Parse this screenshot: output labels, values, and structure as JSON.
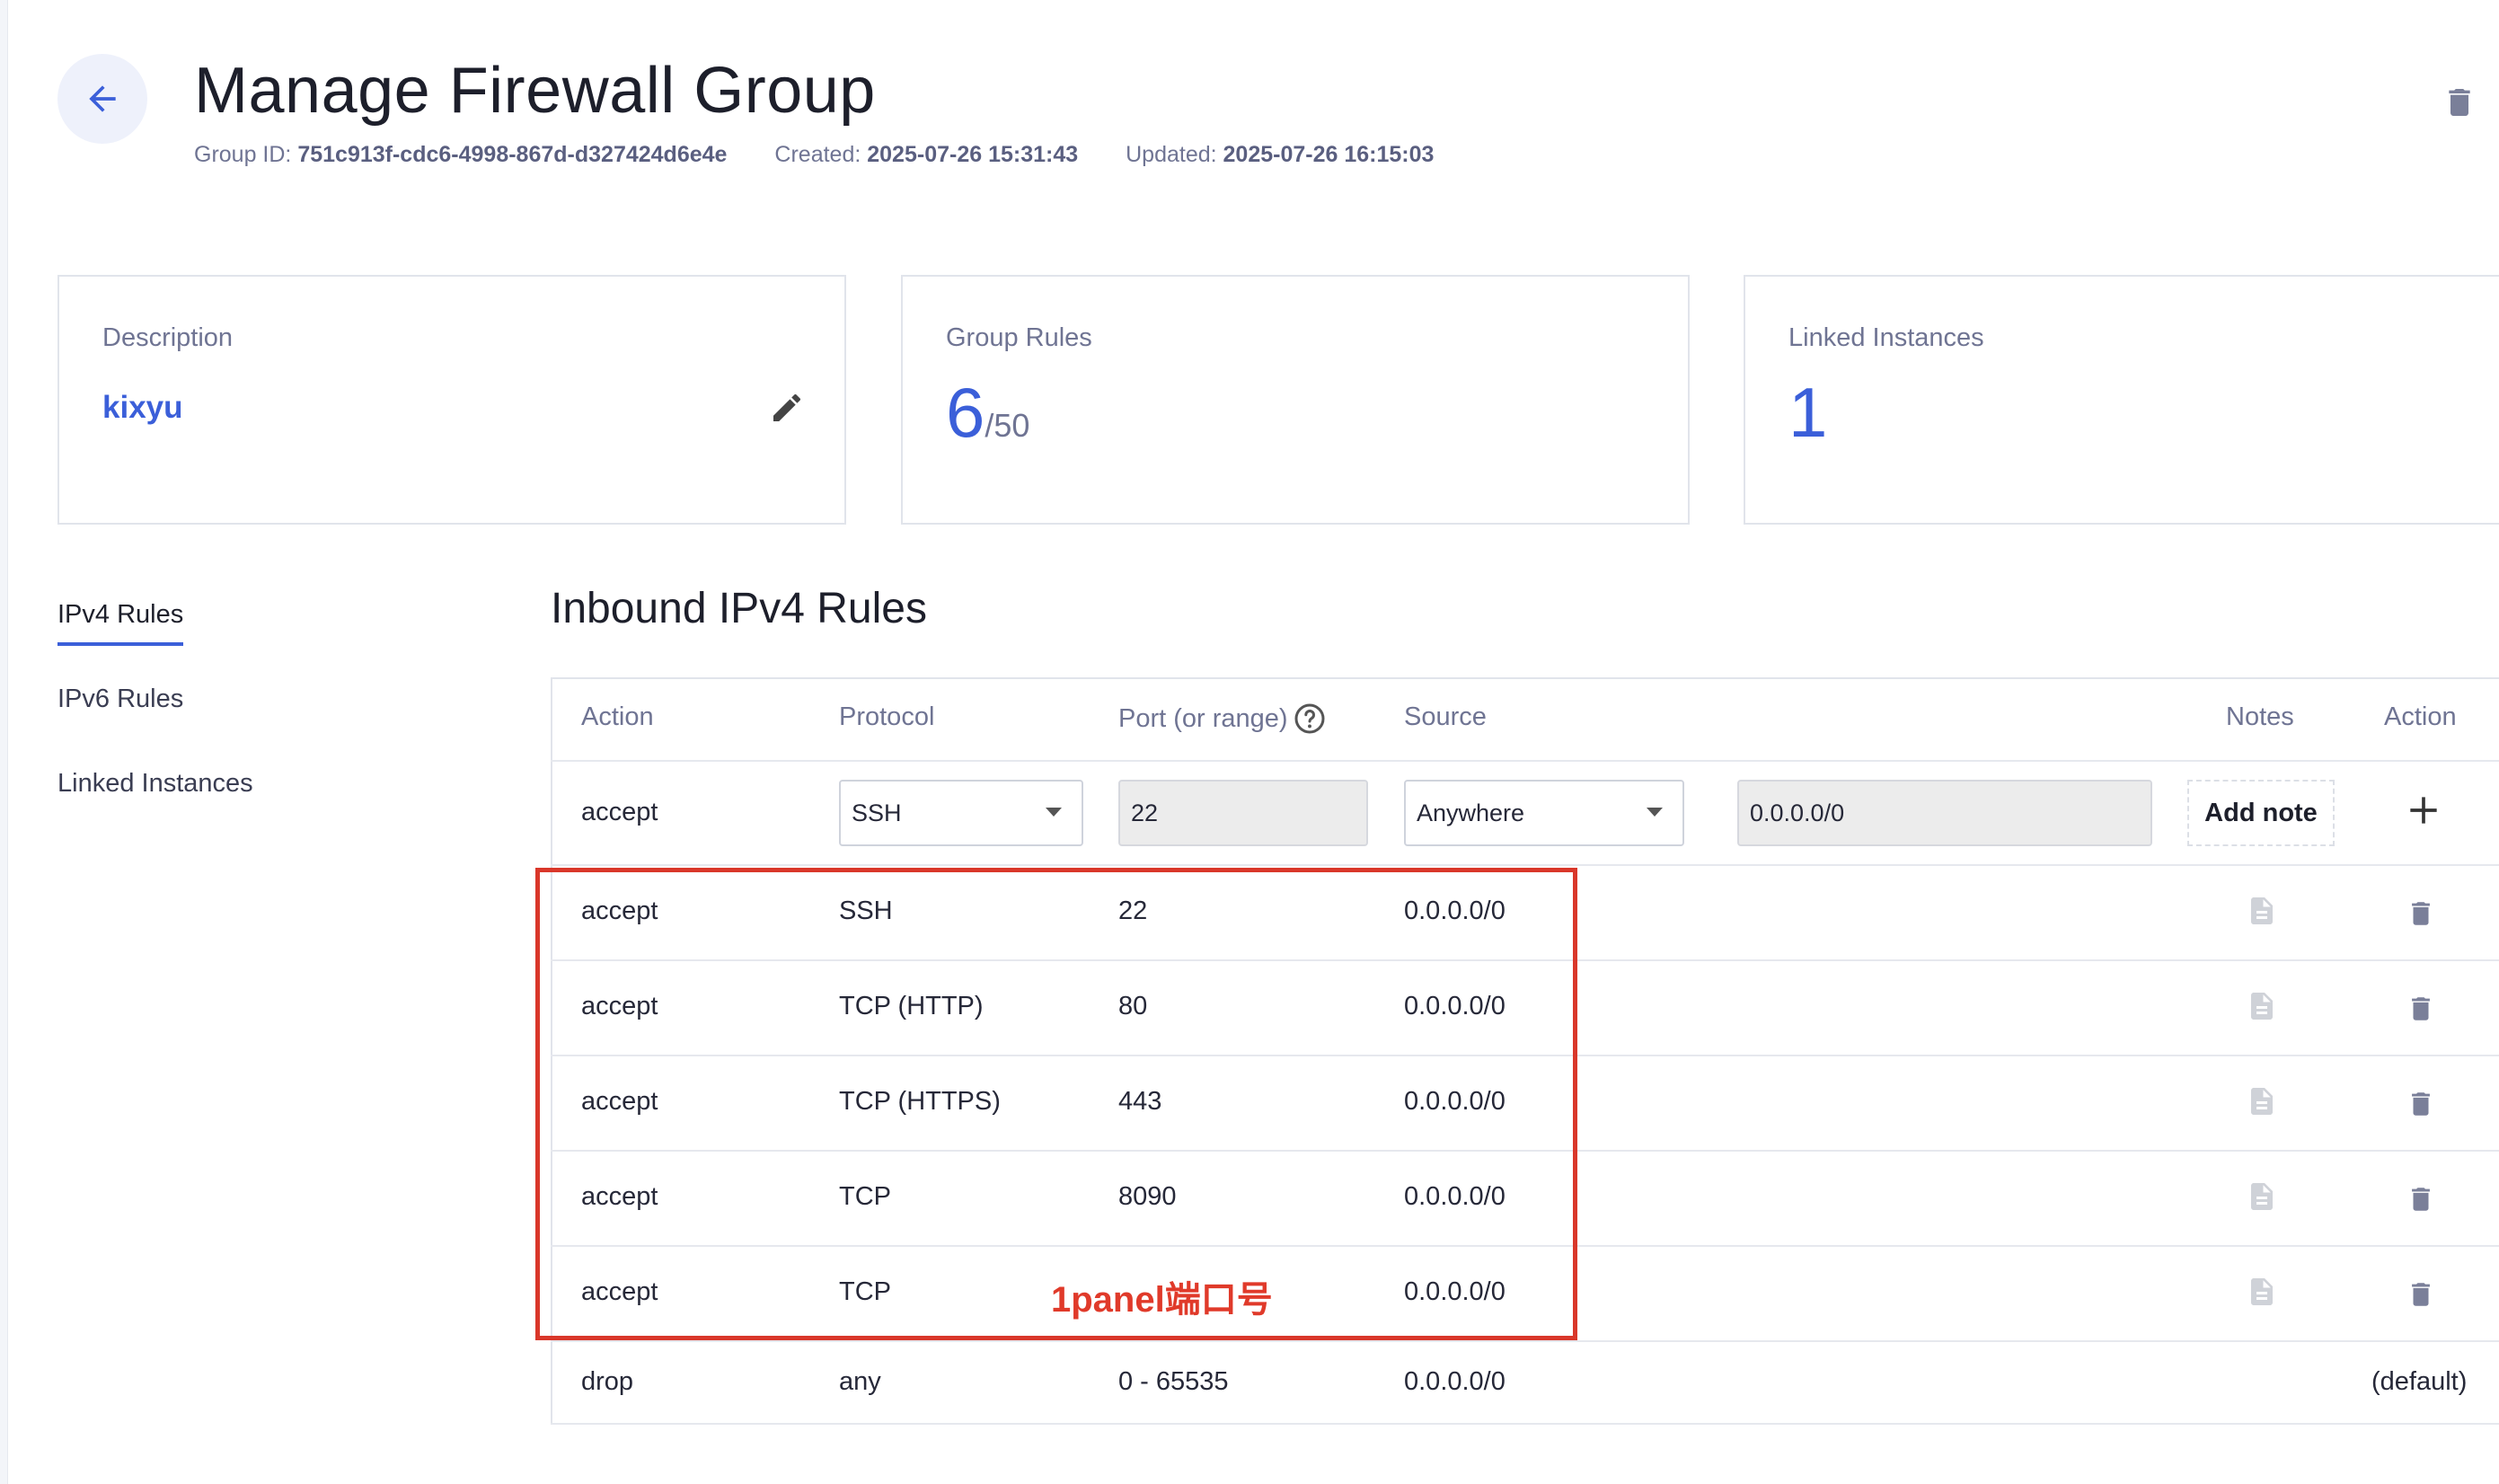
{
  "header": {
    "title": "Manage Firewall Group",
    "group_id_label": "Group ID:",
    "group_id": "751c913f-cdc6-4998-867d-d327424d6e4e",
    "created_label": "Created:",
    "created": "2025-07-26 15:31:43",
    "updated_label": "Updated:",
    "updated": "2025-07-26 16:15:03"
  },
  "cards": {
    "description": {
      "label": "Description",
      "value": "kixyu"
    },
    "group_rules": {
      "label": "Group Rules",
      "value": "6",
      "limit": "/50"
    },
    "linked_instances": {
      "label": "Linked Instances",
      "value": "1"
    }
  },
  "tabs": [
    "IPv4 Rules",
    "IPv6 Rules",
    "Linked Instances"
  ],
  "section_title": "Inbound IPv4 Rules",
  "table": {
    "headers": {
      "action": "Action",
      "protocol": "Protocol",
      "port": "Port (or range)",
      "source": "Source",
      "notes": "Notes",
      "action_col": "Action"
    },
    "new_rule": {
      "action": "accept",
      "protocol": "SSH",
      "port": "22",
      "source": "Anywhere",
      "source_cidr": "0.0.0.0/0",
      "add_note": "Add note"
    },
    "rows": [
      {
        "action": "accept",
        "protocol": "SSH",
        "port": "22",
        "source": "0.0.0.0/0"
      },
      {
        "action": "accept",
        "protocol": "TCP (HTTP)",
        "port": "80",
        "source": "0.0.0.0/0"
      },
      {
        "action": "accept",
        "protocol": "TCP (HTTPS)",
        "port": "443",
        "source": "0.0.0.0/0"
      },
      {
        "action": "accept",
        "protocol": "TCP",
        "port": "8090",
        "source": "0.0.0.0/0"
      },
      {
        "action": "accept",
        "protocol": "TCP",
        "port": "",
        "source": "0.0.0.0/0"
      }
    ],
    "default_row": {
      "action": "drop",
      "protocol": "any",
      "port": "0 - 65535",
      "source": "0.0.0.0/0",
      "note": "(default)"
    }
  },
  "annotation": "1panel端口号",
  "colors": {
    "accent": "#3b5fd9",
    "highlight_border": "#d9372a",
    "icon_gray": "#7a7f99"
  }
}
